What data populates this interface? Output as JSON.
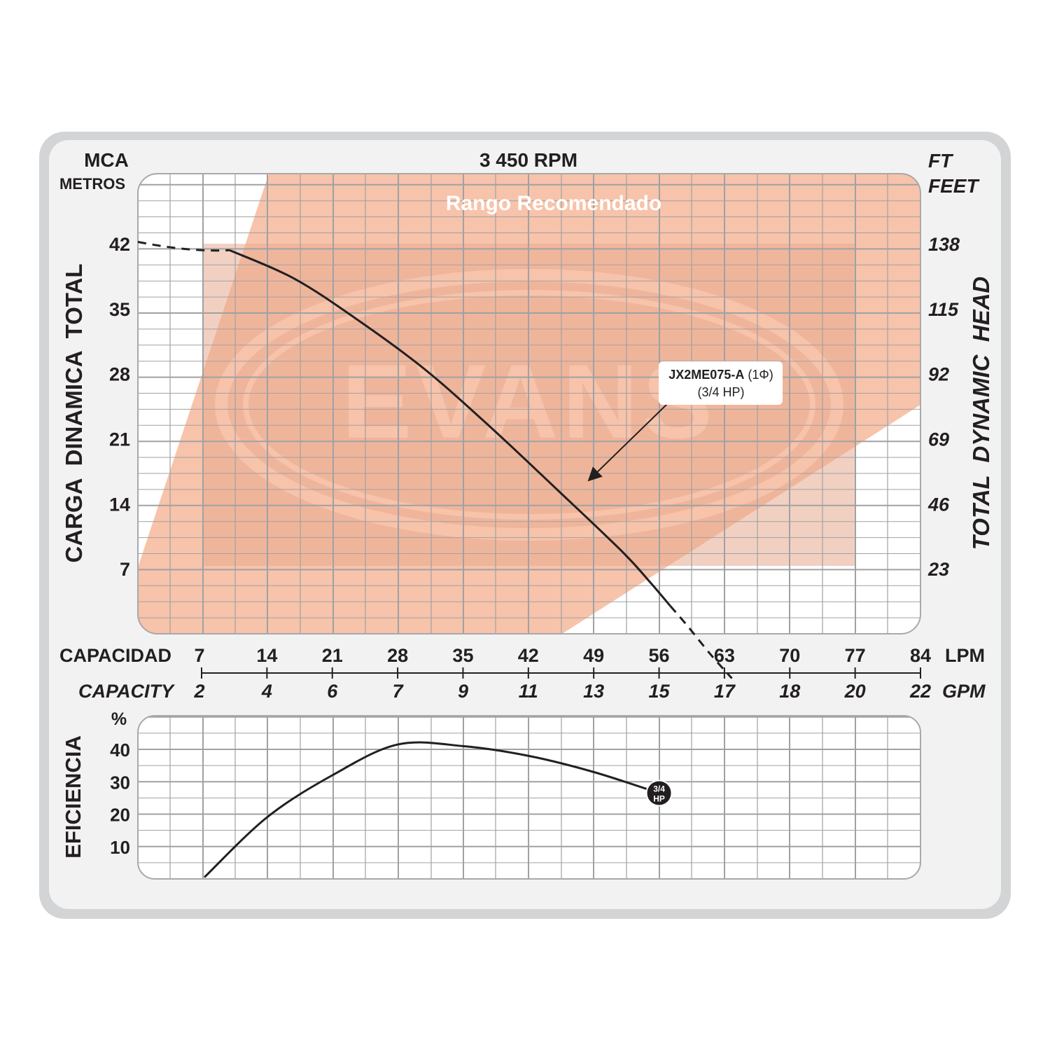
{
  "chart_data": [
    {
      "type": "line",
      "title": "3 450 RPM",
      "left_axis": {
        "unit": "MCA",
        "subunit": "METROS",
        "label": "CARGA  DINAMICA  TOTAL",
        "ticks": [
          "42",
          "35",
          "28",
          "21",
          "14",
          "7"
        ],
        "range": [
          0,
          49
        ]
      },
      "right_axis": {
        "unit": "FT",
        "subunit": "FEET",
        "label": "TOTAL  DYNAMIC  HEAD",
        "ticks": [
          "138",
          "115",
          "92",
          "69",
          "46",
          "23"
        ]
      },
      "x_axis": {
        "label": "CAPACIDAD",
        "unit": "LPM",
        "ticks": [
          "7",
          "14",
          "21",
          "28",
          "35",
          "42",
          "49",
          "56",
          "63",
          "70",
          "77",
          "84"
        ],
        "range": [
          7,
          84
        ],
        "secondary_label": "CAPACITY",
        "secondary_unit": "GPM",
        "secondary_ticks": [
          "2",
          "4",
          "6",
          "7",
          "9",
          "11",
          "13",
          "15",
          "17",
          "18",
          "20",
          "22"
        ]
      },
      "recommended_range_label": "Rango Recomendado",
      "watermark": "EVANS",
      "annotation": {
        "model": "JX2ME075-A",
        "phase": "(1Φ)",
        "power": "(3/4 HP)"
      },
      "grid": true,
      "series": [
        {
          "name": "JX2ME075-A (1Φ) (3/4 HP)",
          "x": [
            7,
            10,
            17,
            24,
            31,
            38,
            45,
            52,
            55,
            57.2
          ],
          "y": [
            42.2,
            41.3,
            38.2,
            33.6,
            28.4,
            22.2,
            15.6,
            8.9,
            5.6,
            3.0
          ]
        },
        {
          "name": "JX2ME075-A (1Φ) (3/4 HP) — extrapolated",
          "style": "dashed",
          "x": [
            57.2,
            59,
            61.5,
            63.8
          ],
          "y": [
            3.0,
            0.9,
            -2.2,
            -4.8
          ]
        }
      ]
    },
    {
      "type": "line",
      "y_axis": {
        "label": "EFICIENCIA",
        "unit": "%",
        "ticks": [
          "40",
          "30",
          "20",
          "10"
        ],
        "range": [
          0,
          50
        ]
      },
      "grid": true,
      "series": [
        {
          "name": "3/4 HP",
          "end_marker": [
            "3/4",
            "HP"
          ],
          "x": [
            7.3,
            14,
            21,
            28,
            35,
            42,
            49,
            56
          ],
          "y": [
            0.5,
            19,
            32,
            41.5,
            41,
            38,
            33,
            26.5
          ]
        }
      ]
    }
  ]
}
